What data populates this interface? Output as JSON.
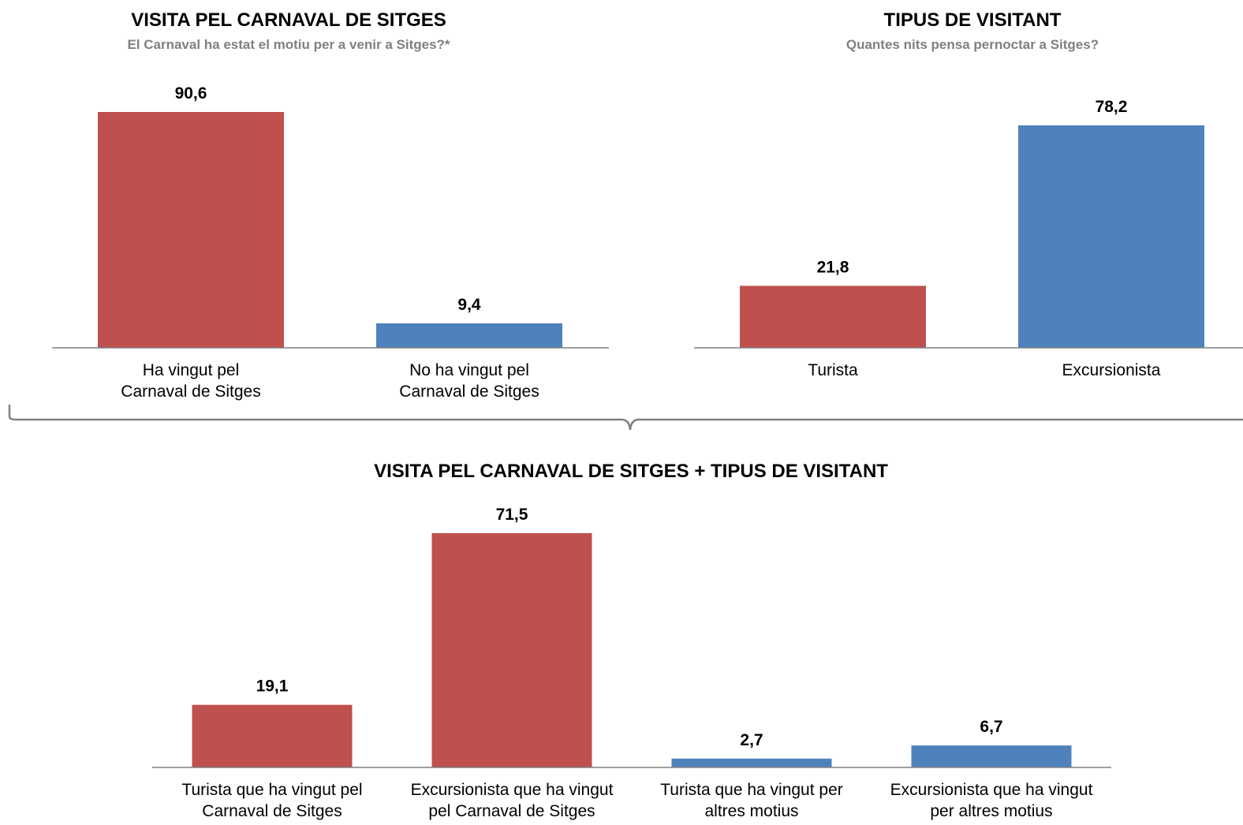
{
  "colors": {
    "red": "#C0504D",
    "blue": "#4F81BD",
    "axis": "#808080"
  },
  "chart_data": [
    {
      "type": "bar",
      "title": "VISITA PEL CARNAVAL DE SITGES",
      "subtitle": "El Carnaval ha estat el motiu per a venir a Sitges?*",
      "categories": [
        [
          "Ha vingut pel",
          "Carnaval de Sitges"
        ],
        [
          "No ha vingut pel",
          "Carnaval de Sitges"
        ]
      ],
      "values": [
        90.6,
        9.4
      ],
      "value_labels": [
        "90,6",
        "9,4"
      ],
      "bar_colors": [
        "red",
        "blue"
      ],
      "ylim": [
        0,
        100
      ],
      "grid": false
    },
    {
      "type": "bar",
      "title": "TIPUS DE VISITANT",
      "subtitle": "Quantes nits pensa pernoctar a Sitges?",
      "categories": [
        [
          "Turista"
        ],
        [
          "Excursionista"
        ]
      ],
      "values": [
        21.8,
        78.2
      ],
      "value_labels": [
        "21,8",
        "78,2"
      ],
      "bar_colors": [
        "red",
        "blue"
      ],
      "ylim": [
        0,
        100
      ],
      "grid": false
    },
    {
      "type": "bar",
      "title": "VISITA PEL CARNAVAL DE SITGES + TIPUS DE VISITANT",
      "categories": [
        [
          "Turista que ha vingut pel",
          "Carnaval de Sitges"
        ],
        [
          "Excursionista que ha vingut",
          "pel Carnaval de Sitges"
        ],
        [
          "Turista que ha vingut per",
          "altres motius"
        ],
        [
          "Excursionista que ha vingut",
          "per altres motius"
        ]
      ],
      "values": [
        19.1,
        71.5,
        2.7,
        6.7
      ],
      "value_labels": [
        "19,1",
        "71,5",
        "2,7",
        "6,7"
      ],
      "bar_colors": [
        "red",
        "red",
        "blue",
        "blue"
      ],
      "ylim": [
        0,
        75
      ],
      "grid": false
    }
  ]
}
